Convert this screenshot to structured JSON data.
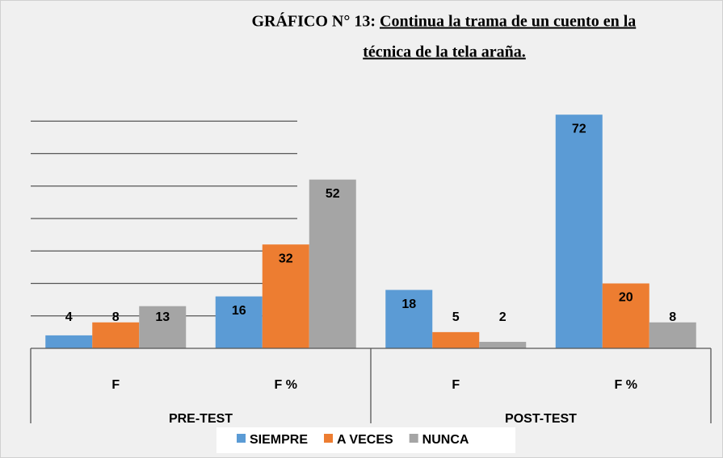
{
  "chart_data": {
    "type": "bar",
    "title_prefix": "GRÁFICO N° 13:",
    "title_lines": [
      "Continua la trama de un cuento en la",
      "técnica de la tela araña."
    ],
    "categories": [
      "F",
      "F %",
      "F",
      "F %"
    ],
    "category_groups": [
      "PRE-TEST",
      "POST-TEST"
    ],
    "series": [
      {
        "name": "SIEMPRE",
        "color": "#5b9bd5",
        "values": [
          4,
          16,
          18,
          72
        ]
      },
      {
        "name": "A VECES",
        "color": "#ed7d31",
        "values": [
          8,
          32,
          5,
          20
        ]
      },
      {
        "name": "NUNCA",
        "color": "#a5a5a5",
        "values": [
          13,
          52,
          2,
          8
        ]
      }
    ],
    "ylim": [
      0,
      80
    ],
    "yticks": [
      10,
      20,
      30,
      40,
      50,
      60,
      70
    ],
    "grid": true,
    "legend": "bottom"
  }
}
